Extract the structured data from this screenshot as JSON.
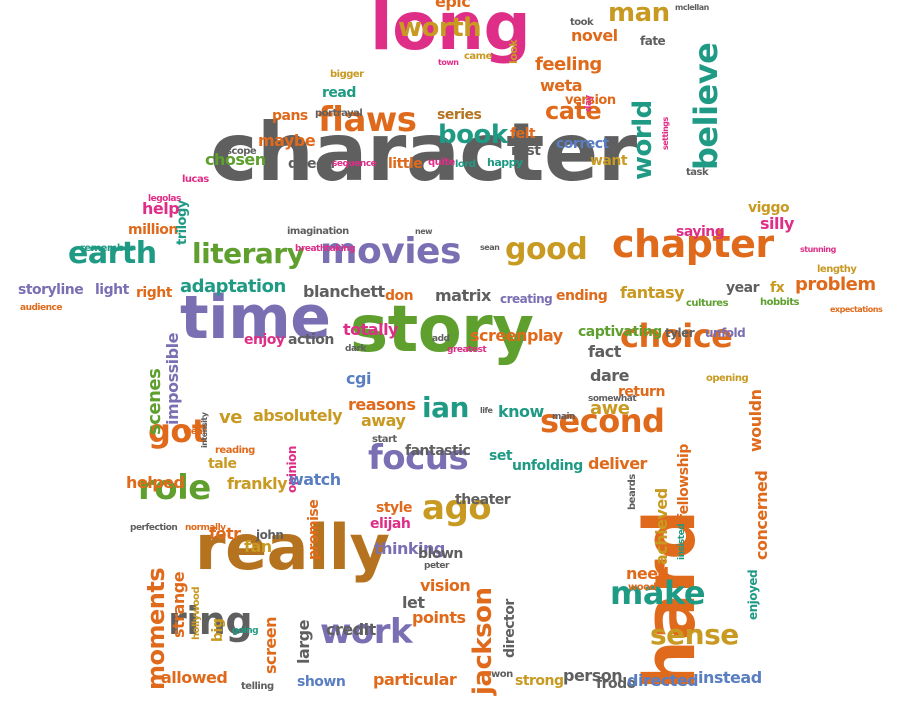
{
  "colors": {
    "gray": "#5f5f5f",
    "orange": "#e06a1b",
    "purple": "#7b6fb4",
    "green": "#5e9f2e",
    "pink": "#df2e87",
    "teal": "#1f9a84",
    "olive": "#c89a22",
    "brown": "#b5731f",
    "blue": "#5a7ec2"
  },
  "words": [
    "character",
    "long",
    "time",
    "story",
    "really",
    "hard",
    "chapter",
    "movies",
    "earth",
    "choice",
    "literary",
    "good",
    "second",
    "flaws",
    "book",
    "believe",
    "world",
    "worth",
    "man",
    "cate",
    "focus",
    "ago",
    "role",
    "got",
    "ring",
    "work",
    "make",
    "sense",
    "jackson",
    "moments",
    "ian",
    "adaptation",
    "blanchett",
    "matrix",
    "fantasy",
    "problem",
    "don",
    "creating",
    "ending",
    "fx",
    "year",
    "hobbits",
    "cultures",
    "storyline",
    "light",
    "right",
    "audience",
    "expectations",
    "lengthy",
    "silly",
    "saying",
    "viggo",
    "stunning",
    "million",
    "remember",
    "trilogy",
    "help",
    "legolas",
    "lucas",
    "chosen",
    "maybe",
    "scope",
    "pans",
    "portrayal",
    "series",
    "read",
    "bigger",
    "town",
    "came",
    "look",
    "epic",
    "novel",
    "fate",
    "took",
    "mclellan",
    "feeling",
    "weta",
    "version",
    "day",
    "felt",
    "rest",
    "correct",
    "want",
    "settings",
    "queen",
    "sequence",
    "little",
    "quite",
    "lord",
    "happy",
    "task",
    "breathtaking",
    "imagination",
    "new",
    "sean",
    "totally",
    "enjoy",
    "action",
    "dark",
    "add",
    "greatest",
    "screenplay",
    "captivating",
    "tyler",
    "unfold",
    "fact",
    "opening",
    "dare",
    "return",
    "impossible",
    "scenes",
    "cgi",
    "absolutely",
    "reasons",
    "away",
    "know",
    "awe",
    "main",
    "somewhat",
    "ve",
    "went",
    "intensity",
    "start",
    "life",
    "fellowship",
    "wouldn",
    "reading",
    "tale",
    "opinion",
    "fantastic",
    "set",
    "unfolding",
    "deliver",
    "helped",
    "frankly",
    "watch",
    "theater",
    "achieved",
    "insisted",
    "style",
    "elijah",
    "perfection",
    "normally",
    "fotr",
    "john",
    "fan",
    "promise",
    "thinking",
    "blown",
    "peter",
    "beards",
    "concerned",
    "enjoyed",
    "need",
    "wood",
    "strange",
    "hollywood",
    "big",
    "going",
    "vision",
    "let",
    "points",
    "director",
    "credit",
    "large",
    "screen",
    "telling",
    "allowed",
    "shown",
    "particular",
    "won",
    "strong",
    "person",
    "frodo",
    "directed",
    "instead"
  ]
}
